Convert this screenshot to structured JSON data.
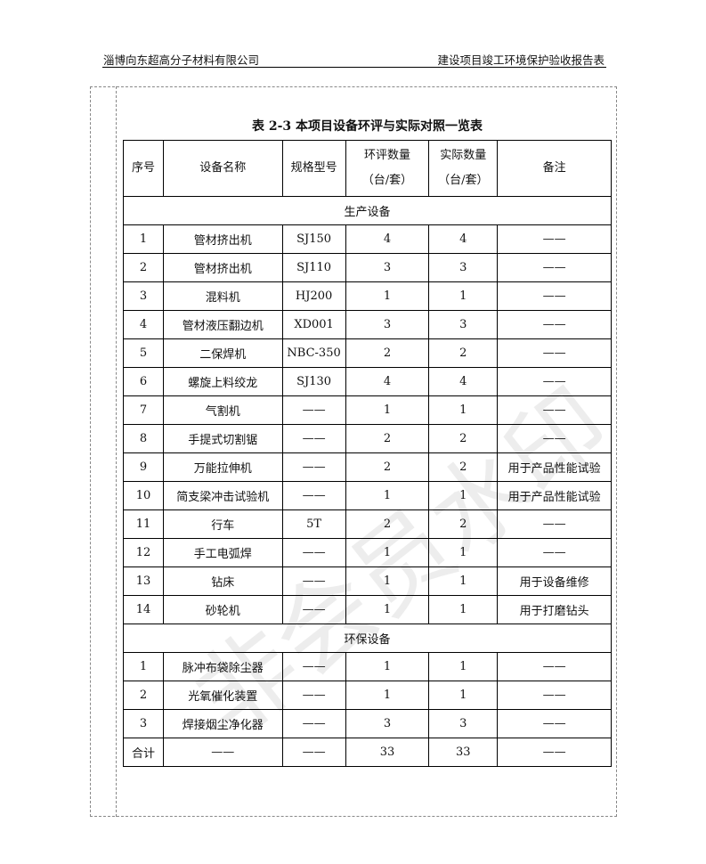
{
  "header": {
    "company": "淄博向东超高分子材料有限公司",
    "report": "建设项目竣工环境保护验收报告表"
  },
  "table": {
    "title": "表 2-3 本项目设备环评与实际对照一览表",
    "columns": [
      "序号",
      "设备名称",
      "规格型号",
      "环评数量",
      "（台/套）",
      "实际数量",
      "（台/套）",
      "备注"
    ],
    "sections": [
      {
        "name": "生产设备",
        "rows": [
          [
            "1",
            "管材挤出机",
            "SJ150",
            "4",
            "4",
            "——"
          ],
          [
            "2",
            "管材挤出机",
            "SJ110",
            "3",
            "3",
            "——"
          ],
          [
            "3",
            "混料机",
            "HJ200",
            "1",
            "1",
            "——"
          ],
          [
            "4",
            "管材液压翻边机",
            "XD001",
            "3",
            "3",
            "——"
          ],
          [
            "5",
            "二保焊机",
            "NBC-350",
            "2",
            "2",
            "——"
          ],
          [
            "6",
            "螺旋上料绞龙",
            "SJ130",
            "4",
            "4",
            "——"
          ],
          [
            "7",
            "气割机",
            "——",
            "1",
            "1",
            "——"
          ],
          [
            "8",
            "手提式切割锯",
            "——",
            "2",
            "2",
            "——"
          ],
          [
            "9",
            "万能拉伸机",
            "——",
            "2",
            "2",
            "用于产品性能试验"
          ],
          [
            "10",
            "简支梁冲击试验机",
            "——",
            "1",
            "1",
            "用于产品性能试验"
          ],
          [
            "11",
            "行车",
            "5T",
            "2",
            "2",
            "——"
          ],
          [
            "12",
            "手工电弧焊",
            "——",
            "1",
            "1",
            "——"
          ],
          [
            "13",
            "钻床",
            "——",
            "1",
            "1",
            "用于设备维修"
          ],
          [
            "14",
            "砂轮机",
            "——",
            "1",
            "1",
            "用于打磨钻头"
          ]
        ]
      },
      {
        "name": "环保设备",
        "rows": [
          [
            "1",
            "脉冲布袋除尘器",
            "——",
            "1",
            "1",
            "——"
          ],
          [
            "2",
            "光氧催化装置",
            "——",
            "1",
            "1",
            "——"
          ],
          [
            "3",
            "焊接烟尘净化器",
            "——",
            "3",
            "3",
            "——"
          ]
        ]
      }
    ],
    "total": [
      "合计",
      "——",
      "——",
      "33",
      "33",
      "——"
    ]
  },
  "watermark": "非会员水印"
}
